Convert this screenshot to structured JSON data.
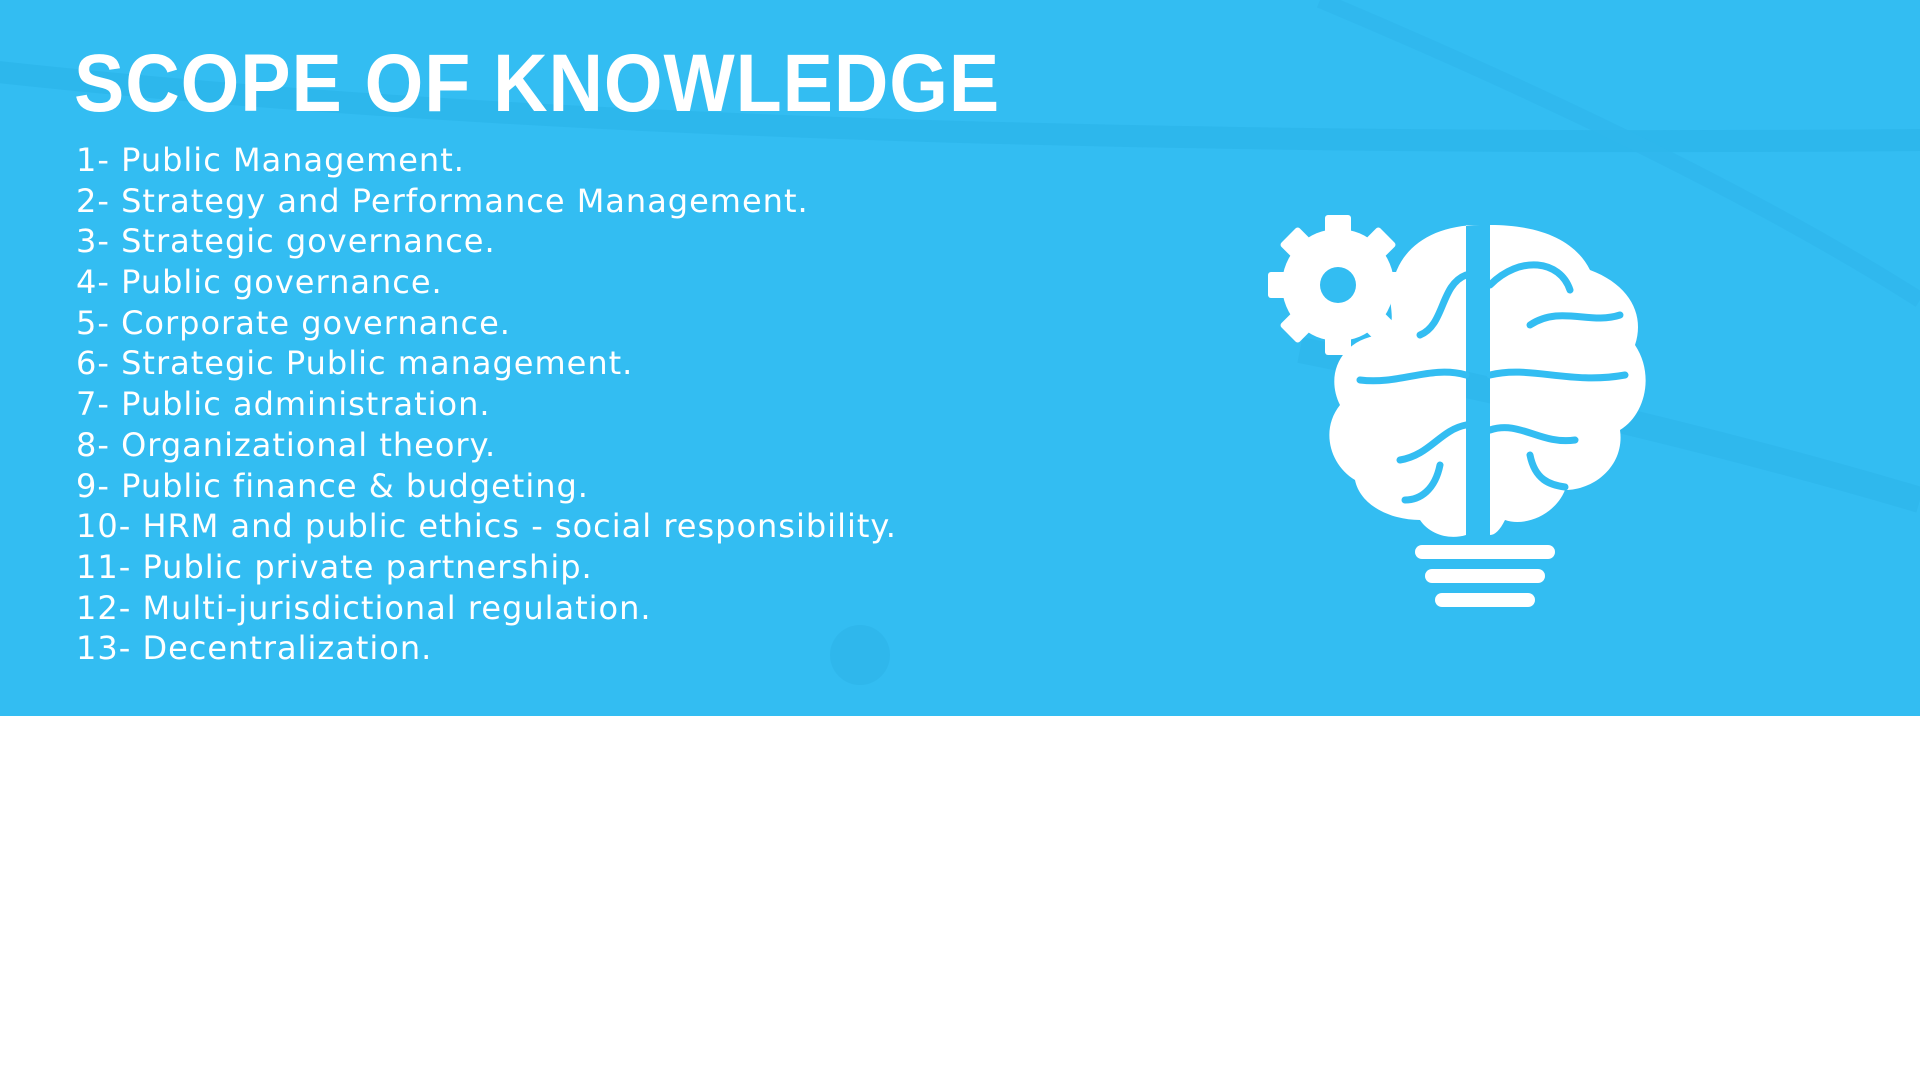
{
  "slide": {
    "title": "SCOPE OF KNOWLEDGE",
    "items": [
      "1- Public Management.",
      "2- Strategy and Performance Management.",
      "3- Strategic governance.",
      "4- Public governance.",
      "5- Corporate governance.",
      "6- Strategic Public management.",
      "7- Public administration.",
      "8- Organizational theory.",
      "9- Public finance & budgeting.",
      "10- HRM and public ethics - social responsibility.",
      "11- Public private partnership.",
      "12- Multi-jurisdictional regulation.",
      "13- Decentralization."
    ],
    "icon": "brain-lightbulb-gear-icon"
  },
  "colors": {
    "banner": "#33bdf2",
    "text": "#ffffff",
    "page": "#ffffff"
  }
}
